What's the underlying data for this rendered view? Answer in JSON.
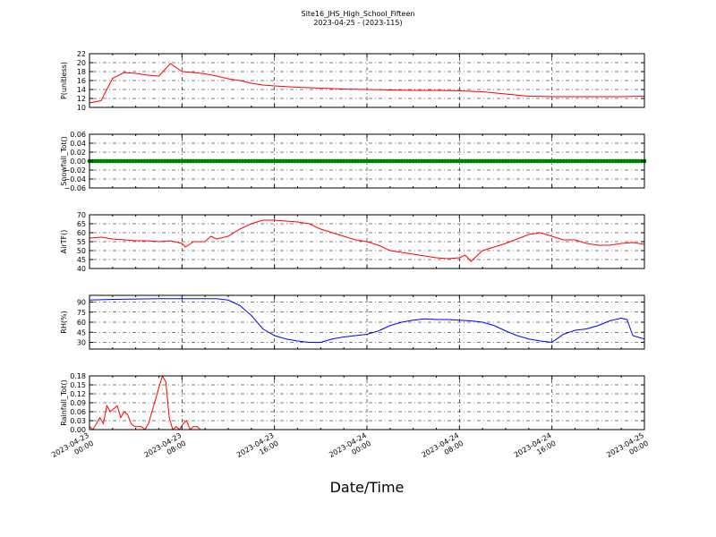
{
  "figure": {
    "title_line1": "Site16_JHS_High_School_Fifteen",
    "title_line2": "2023-04-25 - (2023-115)",
    "xlabel": "Date/Time"
  },
  "chart_data": [
    {
      "type": "line",
      "ylabel": "P(unitless)",
      "ylim": [
        10,
        22
      ],
      "yticks": [
        10,
        12,
        14,
        16,
        18,
        20,
        22
      ],
      "ytick_labels": [
        "10",
        "12",
        "14",
        "16",
        "18",
        "20",
        "22"
      ],
      "grid": true,
      "color": "#ff0000",
      "x_hours": [
        0,
        1,
        2,
        3,
        4,
        5,
        6,
        7,
        8,
        9,
        10,
        11,
        12,
        13,
        14,
        15,
        16,
        18,
        20,
        22,
        24,
        26,
        28,
        30,
        32,
        34,
        36,
        38,
        40,
        42,
        44,
        46,
        48
      ],
      "values": [
        11,
        11.5,
        16.5,
        17.8,
        17.6,
        17.2,
        17.0,
        19.8,
        18.0,
        17.8,
        17.5,
        17.0,
        16.4,
        16.0,
        15.4,
        15.0,
        14.8,
        14.5,
        14.3,
        14.1,
        14.0,
        13.9,
        13.8,
        13.8,
        13.7,
        13.5,
        13.0,
        12.5,
        12.4,
        12.4,
        12.4,
        12.4,
        12.5
      ]
    },
    {
      "type": "scatter",
      "ylabel": "Snowfall_Tot()",
      "ylim": [
        -0.06,
        0.06
      ],
      "yticks": [
        -0.06,
        -0.04,
        -0.02,
        0.0,
        0.02,
        0.04,
        0.06
      ],
      "ytick_labels": [
        "−0.06",
        "−0.04",
        "−0.02",
        "0.00",
        "0.02",
        "0.04",
        "0.06"
      ],
      "grid": true,
      "color": "#008000",
      "x_start_hour": 0,
      "x_end_hour": 48,
      "x_step_hour": 0.25,
      "constant_value": 0
    },
    {
      "type": "line",
      "ylabel": "AirTF()",
      "ylim": [
        40,
        70
      ],
      "yticks": [
        40,
        45,
        50,
        55,
        60,
        65,
        70
      ],
      "ytick_labels": [
        "40",
        "45",
        "50",
        "55",
        "60",
        "65",
        "70"
      ],
      "grid": true,
      "color": "#ff0000",
      "x_hours": [
        0,
        1,
        2,
        3,
        4,
        5,
        6,
        7,
        8,
        8.3,
        9,
        10,
        10.5,
        11,
        12,
        13,
        14,
        15,
        16,
        17,
        18,
        19,
        20,
        21,
        22,
        23,
        24,
        25,
        26,
        27,
        28,
        29,
        30,
        31,
        32,
        32.5,
        33,
        34,
        35,
        36,
        37,
        38,
        39,
        40,
        41,
        42,
        43,
        44,
        45,
        46,
        47,
        48
      ],
      "values": [
        57,
        57.5,
        56.5,
        56,
        55.5,
        55.5,
        55,
        55.5,
        54,
        52,
        55,
        55,
        58,
        56.5,
        58,
        62,
        65,
        67,
        67,
        66.5,
        66,
        65,
        62,
        60,
        58,
        56,
        55,
        53,
        50,
        49,
        48,
        47,
        46,
        45.5,
        46,
        47.5,
        44,
        50,
        52,
        54,
        56.5,
        59,
        60,
        58,
        56,
        56,
        54,
        53,
        53,
        54,
        54.5,
        53.5
      ]
    },
    {
      "type": "line",
      "ylabel": "RH(%)",
      "ylim": [
        20,
        100
      ],
      "yticks": [
        30,
        45,
        60,
        75,
        90
      ],
      "ytick_labels": [
        "30",
        "45",
        "60",
        "75",
        "90"
      ],
      "grid": true,
      "color": "#0000ff",
      "x_hours": [
        0,
        2,
        4,
        6,
        8,
        10,
        11,
        12,
        13,
        14,
        15,
        16,
        17,
        18,
        19,
        20,
        21,
        22,
        23,
        24,
        25,
        26,
        27,
        28,
        29,
        30,
        31,
        32,
        33,
        34,
        35,
        36,
        37,
        38,
        39,
        40,
        41,
        42,
        43,
        44,
        45,
        46,
        46.5,
        47,
        48
      ],
      "values": [
        93,
        94,
        94.5,
        95,
        95,
        95,
        95,
        93,
        85,
        70,
        50,
        40,
        35,
        32,
        30,
        30,
        35,
        38,
        40,
        42,
        47,
        55,
        60,
        63,
        65,
        64,
        64,
        63,
        62,
        60,
        55,
        47,
        40,
        35,
        32,
        30,
        42,
        48,
        50,
        55,
        62,
        66,
        64,
        40,
        35
      ]
    },
    {
      "type": "line",
      "ylabel": "Rainfall_Tot()",
      "ylim": [
        0,
        0.18
      ],
      "yticks": [
        0.0,
        0.03,
        0.06,
        0.09,
        0.12,
        0.15,
        0.18
      ],
      "ytick_labels": [
        "0.00",
        "0.03",
        "0.06",
        "0.09",
        "0.12",
        "0.15",
        "0.18"
      ],
      "grid": true,
      "color": "#ff0000",
      "x_hours": [
        0,
        0.3,
        0.6,
        0.9,
        1.2,
        1.5,
        1.8,
        2.1,
        2.4,
        2.7,
        3.0,
        3.3,
        3.6,
        3.9,
        4.2,
        4.5,
        4.8,
        5.1,
        5.4,
        5.7,
        6.0,
        6.3,
        6.6,
        6.9,
        7.2,
        7.5,
        7.8,
        8.1,
        8.4,
        8.7,
        9.0,
        9.3,
        9.6,
        9.9,
        10.2,
        10.5,
        10.8,
        11.1,
        11.4,
        48
      ],
      "values": [
        0.01,
        0.0,
        0.02,
        0.04,
        0.02,
        0.08,
        0.06,
        0.07,
        0.08,
        0.04,
        0.06,
        0.05,
        0.02,
        0.01,
        0.01,
        0.01,
        0.0,
        0.02,
        0.06,
        0.1,
        0.14,
        0.18,
        0.16,
        0.04,
        0.0,
        0.01,
        0.0,
        0.02,
        0.03,
        0.0,
        0.01,
        0.01,
        0.0,
        0.0,
        0.0,
        0.0,
        0.0,
        0.0,
        0.0,
        0.0
      ]
    }
  ],
  "x_axis": {
    "range_hours": [
      0,
      48
    ],
    "ticks_hours": [
      0,
      8,
      16,
      24,
      32,
      40,
      48
    ],
    "tick_labels": [
      [
        "2023-04-23",
        "00:00"
      ],
      [
        "2023-04-23",
        "08:00"
      ],
      [
        "2023-04-23",
        "16:00"
      ],
      [
        "2023-04-24",
        "00:00"
      ],
      [
        "2023-04-24",
        "08:00"
      ],
      [
        "2023-04-24",
        "16:00"
      ],
      [
        "2023-04-25",
        "00:00"
      ]
    ]
  }
}
